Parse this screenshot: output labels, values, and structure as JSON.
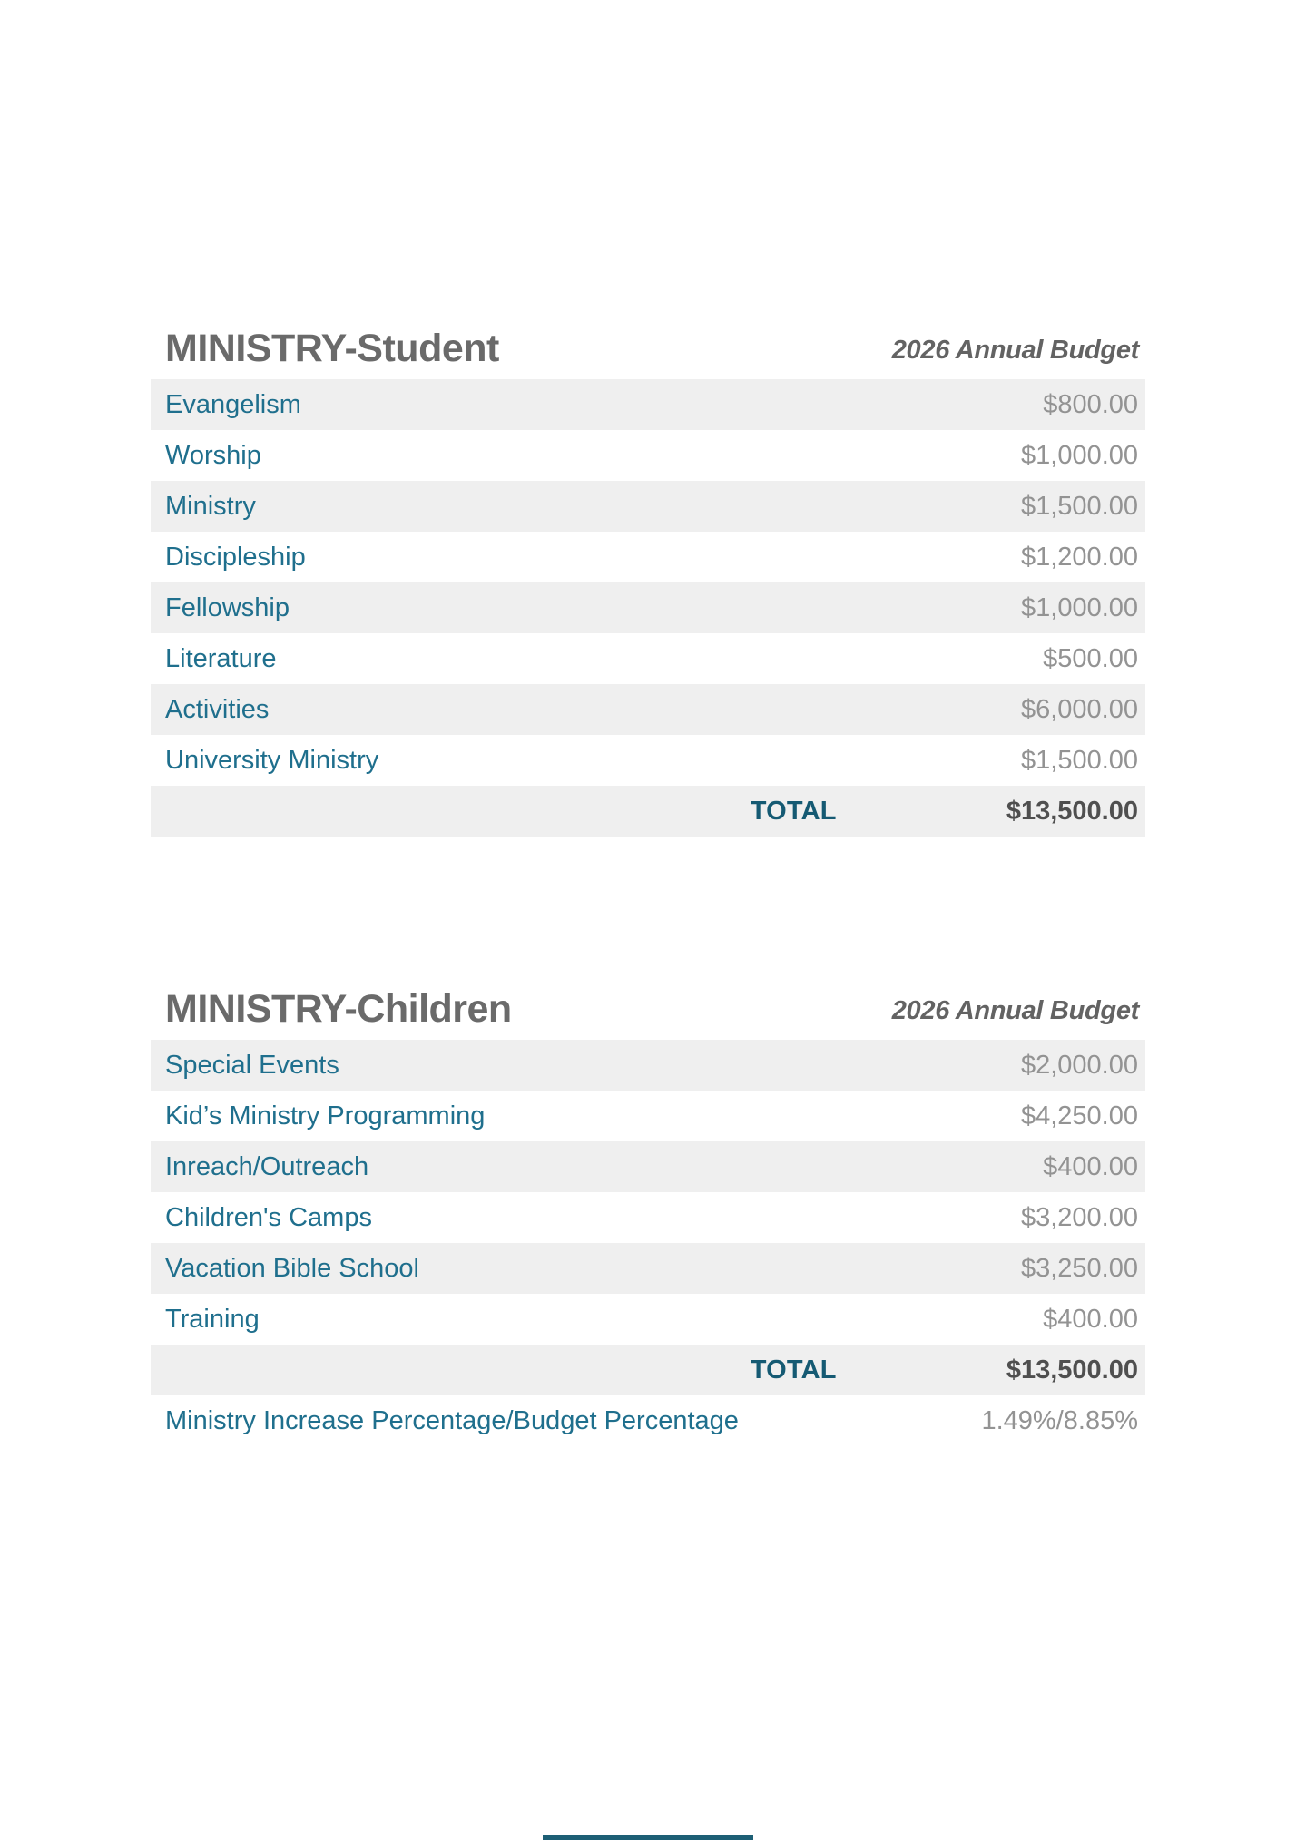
{
  "colors": {
    "accent": "#1F6F8D",
    "total_accent": "#155A73",
    "band": "#EFEFEF",
    "title_gray": "#6A6A6A",
    "value_gray": "#939393",
    "bottom_bar": "#1D5F75"
  },
  "sections": [
    {
      "title": "MINISTRY-Student",
      "budget_label": "2026 Annual Budget",
      "rows": [
        {
          "label": "Evangelism",
          "value": "$800.00"
        },
        {
          "label": "Worship",
          "value": "$1,000.00"
        },
        {
          "label": "Ministry",
          "value": "$1,500.00"
        },
        {
          "label": "Discipleship",
          "value": "$1,200.00"
        },
        {
          "label": "Fellowship",
          "value": "$1,000.00"
        },
        {
          "label": "Literature",
          "value": "$500.00"
        },
        {
          "label": "Activities",
          "value": "$6,000.00"
        },
        {
          "label": "University Ministry",
          "value": "$1,500.00"
        }
      ],
      "total": {
        "label": "TOTAL",
        "value": "$13,500.00"
      }
    },
    {
      "title": "MINISTRY-Children",
      "budget_label": "2026 Annual Budget",
      "rows": [
        {
          "label": "Special Events",
          "value": "$2,000.00"
        },
        {
          "label": "Kid’s Ministry Programming",
          "value": "$4,250.00"
        },
        {
          "label": "Inreach/Outreach",
          "value": "$400.00"
        },
        {
          "label": "Children's Camps",
          "value": "$3,200.00"
        },
        {
          "label": "Vacation Bible School",
          "value": "$3,250.00"
        },
        {
          "label": "Training",
          "value": "$400.00"
        }
      ],
      "total": {
        "label": "TOTAL",
        "value": "$13,500.00"
      },
      "footer": {
        "label": "Ministry Increase Percentage/Budget Percentage",
        "value": "1.49%/8.85%"
      }
    }
  ]
}
